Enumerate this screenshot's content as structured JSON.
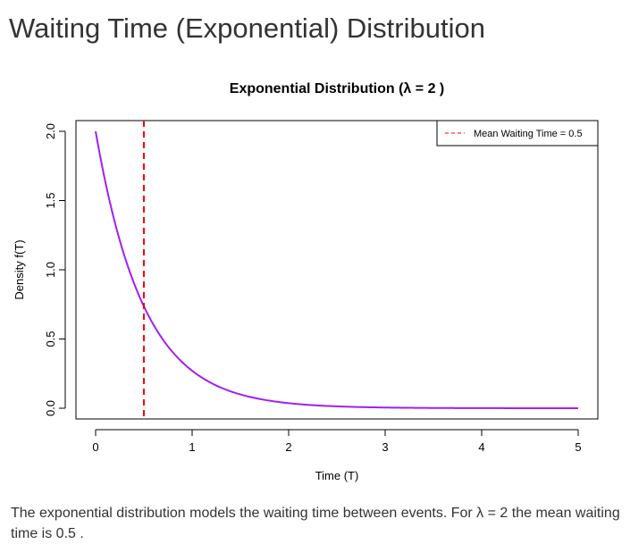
{
  "page": {
    "title": "Waiting Time (Exponential) Distribution",
    "description": "The exponential distribution models the waiting time between events. For λ = 2 the mean waiting time is 0.5 ."
  },
  "chart_data": {
    "type": "line",
    "title": "Exponential Distribution (λ = 2 )",
    "xlabel": "Time (T)",
    "ylabel": "Density f(T)",
    "xlim": [
      0,
      5
    ],
    "ylim": [
      0,
      2
    ],
    "x_ticks": [
      "0",
      "1",
      "2",
      "3",
      "4",
      "5"
    ],
    "y_ticks": [
      "0.0",
      "0.5",
      "1.0",
      "1.5",
      "2.0"
    ],
    "grid": false,
    "lambda": 2,
    "series": [
      {
        "x": [
          0,
          0.25,
          0.5,
          0.75,
          1,
          1.5,
          2,
          2.5,
          3,
          3.5,
          4,
          4.5,
          5
        ],
        "y": [
          2,
          1.213,
          0.736,
          0.446,
          0.271,
          0.1,
          0.037,
          0.013,
          0.005,
          0.002,
          0.001,
          0.0002,
          9e-05
        ],
        "color": "#a020f0"
      }
    ],
    "mean_line": {
      "x": 0.5,
      "color": "#ff0000",
      "style": "dashed"
    },
    "legend": {
      "position": "top-right",
      "entries": [
        "Mean Waiting Time = 0.5"
      ]
    }
  }
}
